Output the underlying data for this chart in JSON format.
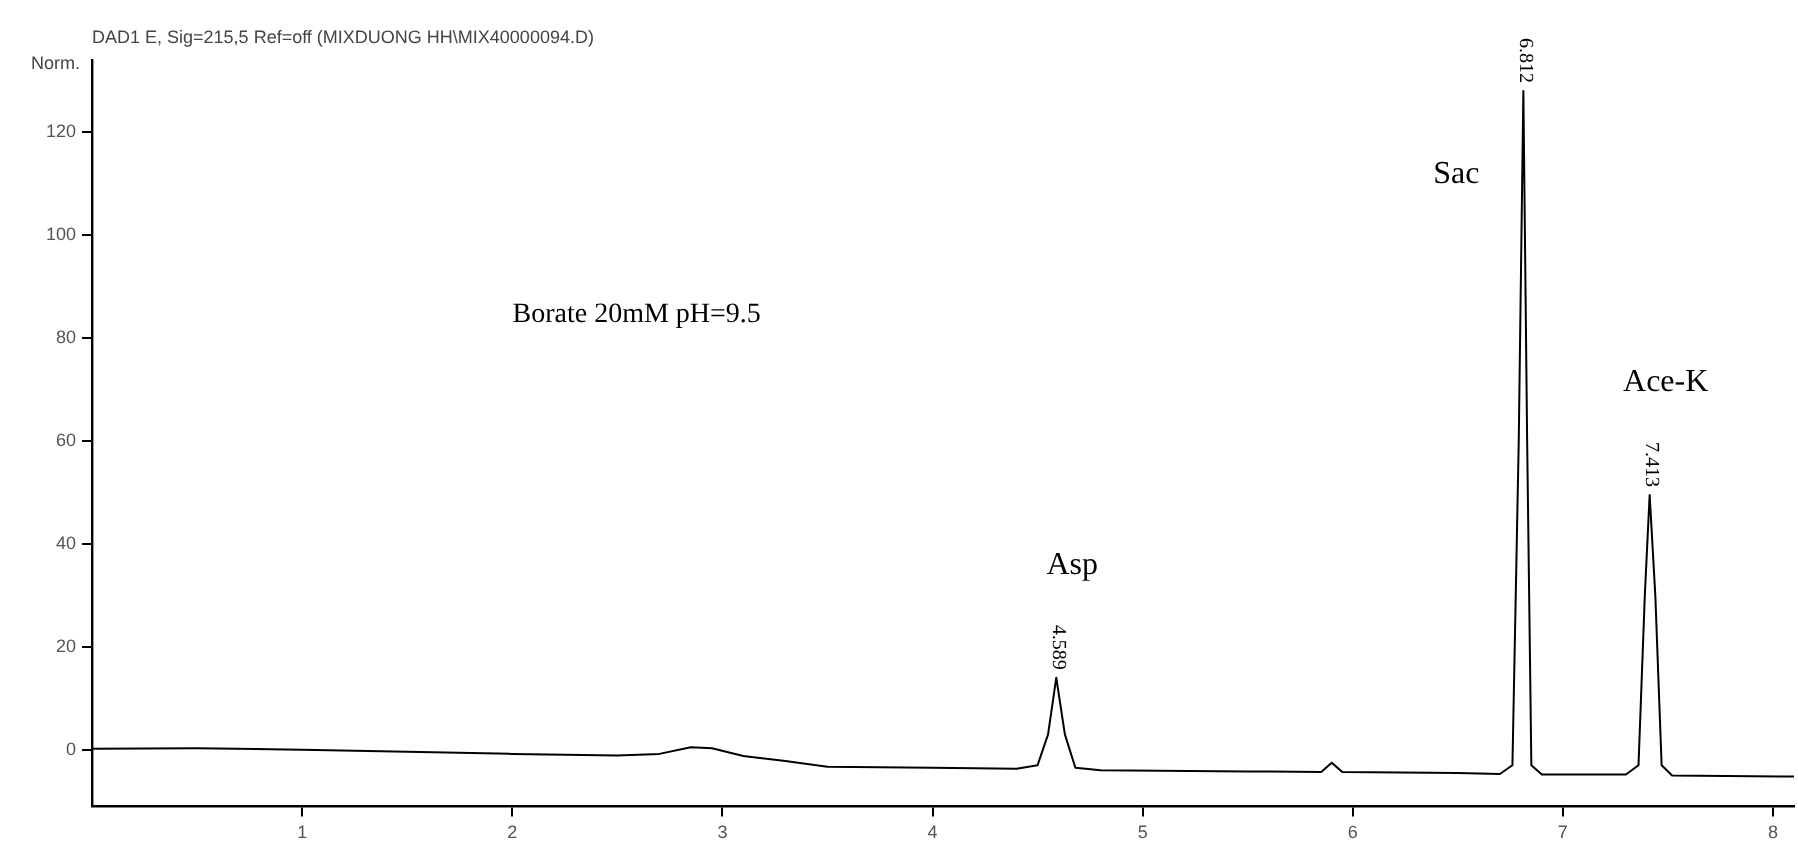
{
  "chart_data": {
    "type": "line",
    "title": "DAD1 E, Sig=215,5 Ref=off (MIXDUONG HH\\MIX40000094.D)",
    "ylabel": "Norm.",
    "x": [
      0,
      0.5,
      1,
      1.5,
      2,
      2.5,
      2.7,
      2.85,
      2.95,
      3.1,
      3.3,
      3.5,
      4,
      4.4,
      4.5,
      4.55,
      4.589,
      4.63,
      4.68,
      4.8,
      5.5,
      5.85,
      5.9,
      5.95,
      6.5,
      6.7,
      6.76,
      6.79,
      6.812,
      6.83,
      6.85,
      6.9,
      7.3,
      7.36,
      7.39,
      7.413,
      7.44,
      7.47,
      7.52,
      8.1
    ],
    "series": [
      {
        "color": "#000000",
        "values": [
          0.2,
          0.3,
          0,
          -0.4,
          -0.8,
          -1.1,
          -0.8,
          0.5,
          0.3,
          -1.2,
          -2.2,
          -3.3,
          -3.5,
          -3.7,
          -3,
          3,
          14,
          3,
          -3.5,
          -4,
          -4.2,
          -4.3,
          -2.5,
          -4.3,
          -4.5,
          -4.7,
          -3,
          60,
          128,
          60,
          -3,
          -4.8,
          -4.8,
          -3,
          30,
          49.5,
          30,
          -3,
          -5,
          -5.2
        ]
      }
    ],
    "xlim": [
      0,
      8.1
    ],
    "xticks": [
      1,
      2,
      3,
      4,
      5,
      6,
      7,
      8
    ],
    "ylim": [
      -11,
      134
    ],
    "yticks": [
      0,
      20,
      40,
      60,
      80,
      100,
      120
    ],
    "grid": false,
    "legend": false,
    "marker": "none",
    "line_style": "solid",
    "annotations": [
      "Borate 20mM pH=9.5",
      {
        "text": "Asp",
        "x": 4.589,
        "y": 14
      },
      {
        "text": "4.589",
        "x": 4.589,
        "y": 14
      },
      {
        "text": "Sac",
        "x": 6.812,
        "y": 128
      },
      {
        "text": "6.812",
        "x": 6.812,
        "y": 128
      },
      {
        "text": "Ace-K",
        "x": 7.413,
        "y": 49.5
      },
      {
        "text": "7.413",
        "x": 7.413,
        "y": 49.5
      }
    ]
  }
}
